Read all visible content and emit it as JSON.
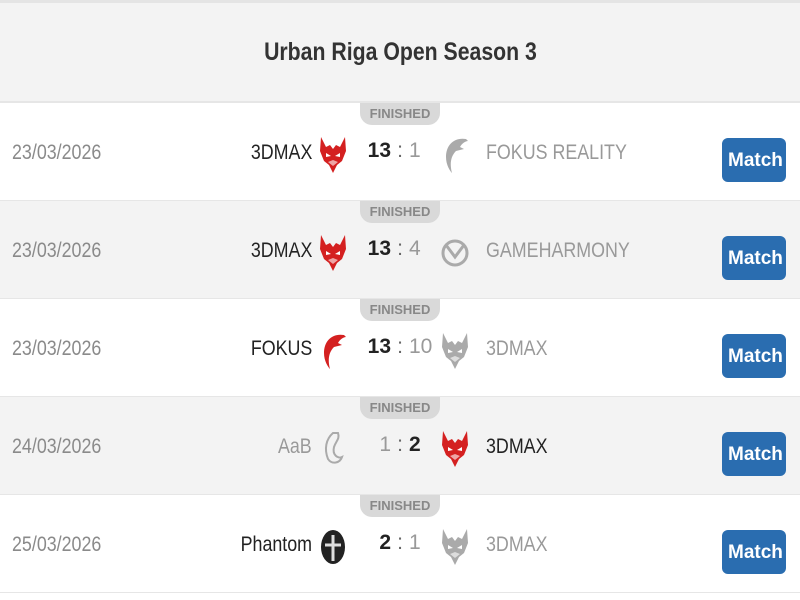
{
  "title": "Urban Riga Open Season 3",
  "colors": {
    "button": "#2a6db0",
    "red": "#d42020",
    "grey": "#999999"
  },
  "matches": [
    {
      "status": "FINISHED",
      "date": "23/03/2026",
      "home": "3DMAX",
      "home_score": "13",
      "away_score": "1",
      "away": "FOKUS REALITY",
      "winner": "home",
      "home_logo": "3dmax-red",
      "away_logo": "fokus-grey",
      "button": "Match"
    },
    {
      "status": "FINISHED",
      "date": "23/03/2026",
      "home": "3DMAX",
      "home_score": "13",
      "away_score": "4",
      "away": "GAMEHARMONY",
      "winner": "home",
      "home_logo": "3dmax-red",
      "away_logo": "gameharmony-grey",
      "button": "Match"
    },
    {
      "status": "FINISHED",
      "date": "23/03/2026",
      "home": "FOKUS",
      "home_score": "13",
      "away_score": "10",
      "away": "3DMAX",
      "winner": "home",
      "home_logo": "fokus-red",
      "away_logo": "3dmax-grey",
      "button": "Match"
    },
    {
      "status": "FINISHED",
      "date": "24/03/2026",
      "home": "AaB",
      "home_score": "1",
      "away_score": "2",
      "away": "3DMAX",
      "winner": "away",
      "home_logo": "aab-grey",
      "away_logo": "3dmax-red",
      "button": "Match"
    },
    {
      "status": "FINISHED",
      "date": "25/03/2026",
      "home": "Phantom",
      "home_score": "2",
      "away_score": "1",
      "away": "3DMAX",
      "winner": "home",
      "home_logo": "phantom-dark",
      "away_logo": "3dmax-grey",
      "button": "Match"
    }
  ]
}
